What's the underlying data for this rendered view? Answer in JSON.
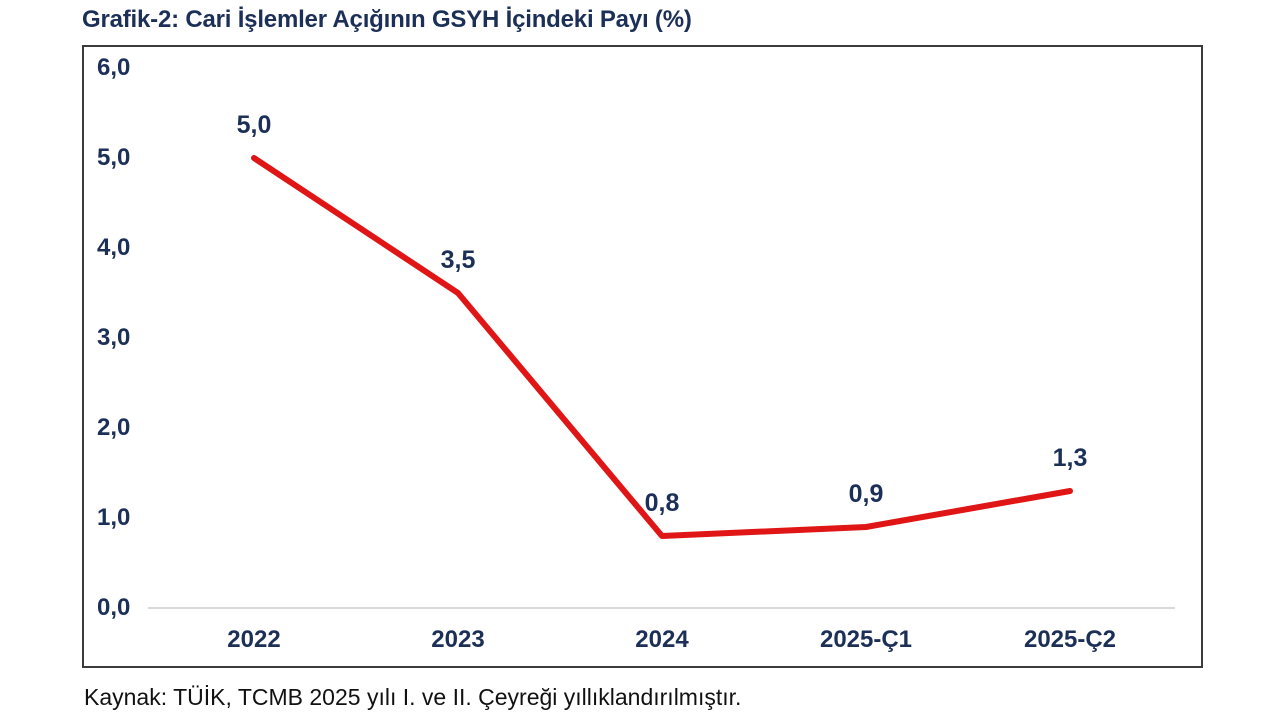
{
  "header": {
    "title": "Grafik-2: Cari İşlemler Açığının GSYH İçindeki Payı (%)"
  },
  "footer": {
    "source": "Kaynak: TÜİK, TCMB 2025 yılı I. ve II. Çeyreği yıllıklandırılmıştır."
  },
  "colors": {
    "accent_navy": "#1c3057",
    "line_red": "#e01616",
    "gridline_gray": "#d9d9d9",
    "plot_border": "#3c3c3c"
  },
  "chart_data": {
    "type": "line",
    "title": "Grafik-2: Cari İşlemler Açığının GSYH İçindeki Payı (%)",
    "categories": [
      "2022",
      "2023",
      "2024",
      "2025-Ç1",
      "2025-Ç2"
    ],
    "values": [
      5.0,
      3.5,
      0.8,
      0.9,
      1.3
    ],
    "data_labels": [
      "5,0",
      "3,5",
      "0,8",
      "0,9",
      "1,3"
    ],
    "xlabel": "",
    "ylabel": "",
    "ylim": [
      0,
      6
    ],
    "y_ticks": [
      {
        "value": 6,
        "label": "6,0"
      },
      {
        "value": 5,
        "label": "5,0"
      },
      {
        "value": 4,
        "label": "4,0"
      },
      {
        "value": 3,
        "label": "3,0"
      },
      {
        "value": 2,
        "label": "2,0"
      },
      {
        "value": 1,
        "label": "1,0"
      },
      {
        "value": 0,
        "label": "0,0"
      }
    ],
    "grid": "zero-baseline-only",
    "legend": "none",
    "line_color": "#e01616",
    "label_color": "#1c3057",
    "source_note": "Kaynak: TÜİK, TCMB 2025 yılı I. ve II. Çeyreği yıllıklandırılmıştır."
  }
}
